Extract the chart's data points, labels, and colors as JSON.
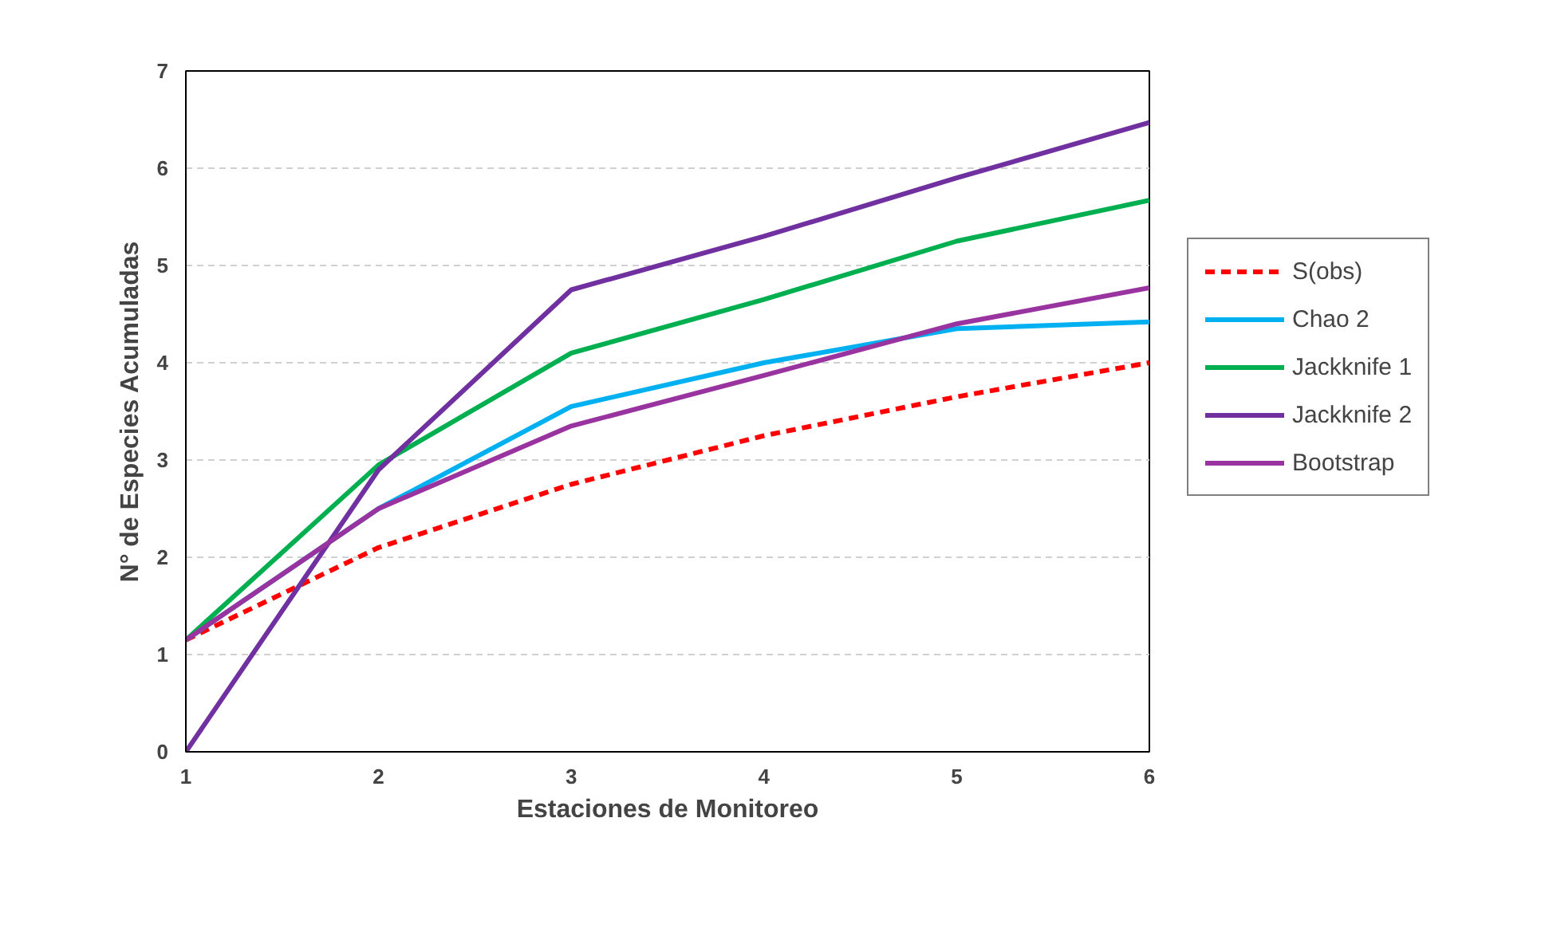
{
  "chart_data": {
    "type": "line",
    "xlabel": "Estaciones de Monitoreo",
    "ylabel": "N° de Especies Acumuladas",
    "x": [
      1,
      2,
      3,
      4,
      5,
      6
    ],
    "xlim": [
      1,
      6
    ],
    "xticks": [
      1,
      2,
      3,
      4,
      5,
      6
    ],
    "ylim": [
      0,
      7
    ],
    "yticks": [
      0,
      1,
      2,
      3,
      4,
      5,
      6,
      7
    ],
    "grid": "y",
    "legend": "right",
    "marker": "none",
    "series": [
      {
        "name": "S(obs)",
        "color": "#ff0000",
        "line_style": "dashed",
        "values": [
          1.15,
          2.1,
          2.75,
          3.25,
          3.65,
          4.0
        ]
      },
      {
        "name": "Chao 2",
        "color": "#00b0f0",
        "line_style": "solid",
        "values": [
          1.15,
          2.5,
          3.55,
          4.0,
          4.35,
          4.42
        ]
      },
      {
        "name": "Jackknife 1",
        "color": "#00b050",
        "line_style": "solid",
        "values": [
          1.15,
          2.95,
          4.1,
          4.65,
          5.25,
          5.67
        ]
      },
      {
        "name": "Jackknife 2",
        "color": "#7030a0",
        "line_style": "solid",
        "values": [
          0,
          2.9,
          4.75,
          5.3,
          5.9,
          6.47
        ]
      },
      {
        "name": "Bootstrap",
        "color": "#9933a0",
        "line_style": "solid",
        "values": [
          1.15,
          2.5,
          3.35,
          3.87,
          4.4,
          4.77
        ]
      }
    ]
  }
}
